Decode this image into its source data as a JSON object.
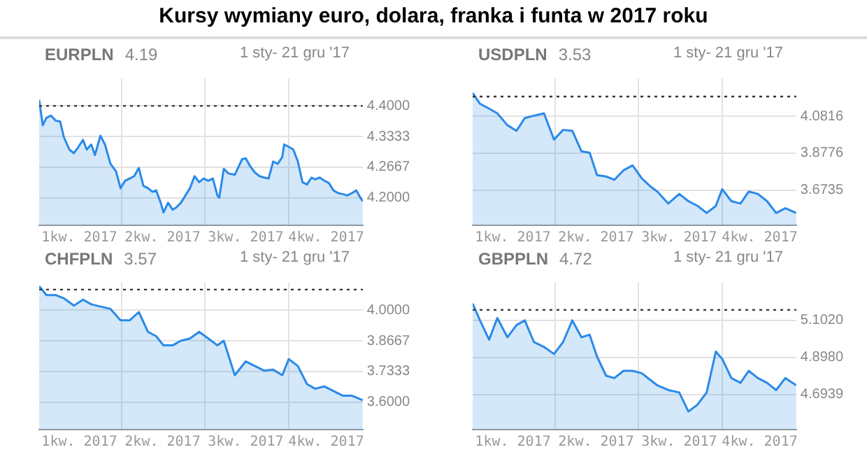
{
  "chart_data": [
    {
      "type": "other",
      "title": "Kursy wymiany euro, dolara, franka i funta w 2017 roku"
    },
    {
      "type": "area",
      "title": "EURPLN",
      "subtitle": "1 sty- 21 gru '17",
      "annotations": [
        "4.19"
      ],
      "grid": true,
      "legend": false,
      "marker": "none",
      "line_style": "solid",
      "x": [
        "2017-01-01",
        "2017-01-05",
        "2017-01-09",
        "2017-01-14",
        "2017-01-19",
        "2017-01-24",
        "2017-01-28",
        "2017-02-03",
        "2017-02-08",
        "2017-02-13",
        "2017-02-18",
        "2017-02-22",
        "2017-02-27",
        "2017-03-03",
        "2017-03-09",
        "2017-03-14",
        "2017-03-20",
        "2017-03-26",
        "2017-03-31",
        "2017-04-05",
        "2017-04-10",
        "2017-04-15",
        "2017-04-20",
        "2017-04-25",
        "2017-04-30",
        "2017-05-05",
        "2017-05-09",
        "2017-05-14",
        "2017-05-17",
        "2017-05-22",
        "2017-05-27",
        "2017-05-31",
        "2017-06-05",
        "2017-06-10",
        "2017-06-15",
        "2017-06-20",
        "2017-06-25",
        "2017-06-30",
        "2017-07-05",
        "2017-07-10",
        "2017-07-15",
        "2017-07-17",
        "2017-07-22",
        "2017-07-27",
        "2017-08-03",
        "2017-08-11",
        "2017-08-15",
        "2017-08-20",
        "2017-08-25",
        "2017-08-30",
        "2017-09-04",
        "2017-09-09",
        "2017-09-14",
        "2017-09-19",
        "2017-09-24",
        "2017-09-26",
        "2017-10-01",
        "2017-10-06",
        "2017-10-11",
        "2017-10-16",
        "2017-10-21",
        "2017-10-26",
        "2017-10-30",
        "2017-11-04",
        "2017-11-09",
        "2017-11-14",
        "2017-11-19",
        "2017-11-24",
        "2017-11-29",
        "2017-12-04",
        "2017-12-09",
        "2017-12-14",
        "2017-12-17",
        "2017-12-21"
      ],
      "series": [
        {
          "color": "#2a8ae8",
          "values": [
            4.413,
            4.358,
            4.374,
            4.379,
            4.368,
            4.366,
            4.332,
            4.305,
            4.297,
            4.311,
            4.326,
            4.305,
            4.316,
            4.293,
            4.335,
            4.316,
            4.274,
            4.258,
            4.221,
            4.237,
            4.242,
            4.247,
            4.265,
            4.226,
            4.221,
            4.213,
            4.216,
            4.189,
            4.168,
            4.189,
            4.174,
            4.179,
            4.189,
            4.205,
            4.221,
            4.247,
            4.234,
            4.242,
            4.237,
            4.242,
            4.205,
            4.2,
            4.263,
            4.253,
            4.25,
            4.284,
            4.286,
            4.268,
            4.255,
            4.247,
            4.244,
            4.242,
            4.279,
            4.274,
            4.289,
            4.316,
            4.311,
            4.305,
            4.279,
            4.234,
            4.229,
            4.244,
            4.24,
            4.244,
            4.237,
            4.232,
            4.216,
            4.21,
            4.208,
            4.205,
            4.21,
            4.216,
            4.205,
            4.192
          ]
        }
      ],
      "xlim": [
        "2017-01-01",
        "2017-12-21"
      ],
      "xticks": [
        {
          "value": "2017-02-14",
          "label": "1kw. 2017"
        },
        {
          "value": "2017-04-01",
          "label": null
        },
        {
          "value": "2017-05-16",
          "label": "2kw. 2017"
        },
        {
          "value": "2017-07-01",
          "label": null
        },
        {
          "value": "2017-08-15",
          "label": "3kw. 2017"
        },
        {
          "value": "2017-10-01",
          "label": null
        },
        {
          "value": "2017-11-11",
          "label": "4kw. 2017"
        }
      ],
      "ylim": [
        4.14,
        4.46
      ],
      "yticks": [
        {
          "value": 4.2,
          "label": "4.2000"
        },
        {
          "value": 4.2667,
          "label": "4.2667"
        },
        {
          "value": 4.3333,
          "label": "4.3333"
        },
        {
          "value": 4.4,
          "label": "4.4000"
        }
      ],
      "ref_lines": [
        {
          "axis": "y",
          "value": 4.4,
          "color": "#333333",
          "line_style": "dotted"
        }
      ]
    },
    {
      "type": "area",
      "title": "USDPLN",
      "subtitle": "1 sty- 21 gru '17",
      "annotations": [
        "3.53"
      ],
      "grid": true,
      "legend": false,
      "marker": "none",
      "line_style": "solid",
      "x": [
        "2017-01-01",
        "2017-01-09",
        "2017-01-19",
        "2017-01-28",
        "2017-02-08",
        "2017-02-18",
        "2017-02-27",
        "2017-03-09",
        "2017-03-20",
        "2017-03-31",
        "2017-04-10",
        "2017-04-20",
        "2017-04-30",
        "2017-05-09",
        "2017-05-17",
        "2017-05-27",
        "2017-06-05",
        "2017-06-15",
        "2017-06-25",
        "2017-07-05",
        "2017-07-15",
        "2017-07-22",
        "2017-08-03",
        "2017-08-15",
        "2017-08-25",
        "2017-09-04",
        "2017-09-14",
        "2017-09-24",
        "2017-10-01",
        "2017-10-11",
        "2017-10-21",
        "2017-10-30",
        "2017-11-09",
        "2017-11-19",
        "2017-11-29",
        "2017-12-09",
        "2017-12-21"
      ],
      "series": [
        {
          "color": "#2a8ae8",
          "values": [
            4.21,
            4.15,
            4.123,
            4.097,
            4.032,
            4.001,
            4.071,
            4.084,
            4.097,
            3.953,
            4.006,
            4.001,
            3.888,
            3.88,
            3.757,
            3.749,
            3.731,
            3.783,
            3.81,
            3.739,
            3.692,
            3.666,
            3.6,
            3.653,
            3.613,
            3.587,
            3.548,
            3.587,
            3.679,
            3.613,
            3.6,
            3.666,
            3.653,
            3.613,
            3.548,
            3.574,
            3.548
          ]
        }
      ],
      "xlim": [
        "2017-01-01",
        "2017-12-21"
      ],
      "xticks": [
        {
          "value": "2017-02-14",
          "label": "1kw. 2017"
        },
        {
          "value": "2017-04-01",
          "label": null
        },
        {
          "value": "2017-05-16",
          "label": "2kw. 2017"
        },
        {
          "value": "2017-07-01",
          "label": null
        },
        {
          "value": "2017-08-15",
          "label": "3kw. 2017"
        },
        {
          "value": "2017-10-01",
          "label": null
        },
        {
          "value": "2017-11-11",
          "label": "4kw. 2017"
        }
      ],
      "ylim": [
        3.48,
        4.29
      ],
      "yticks": [
        {
          "value": 3.6735,
          "label": "3.6735"
        },
        {
          "value": 3.8776,
          "label": "3.8776"
        },
        {
          "value": 4.0816,
          "label": "4.0816"
        }
      ],
      "ref_lines": [
        {
          "axis": "y",
          "value": 4.19,
          "color": "#333333",
          "line_style": "dotted"
        }
      ]
    },
    {
      "type": "area",
      "title": "CHFPLN",
      "subtitle": "1 sty- 21 gru '17",
      "annotations": [
        "3.57"
      ],
      "grid": true,
      "legend": false,
      "marker": "none",
      "line_style": "solid",
      "x": [
        "2017-01-01",
        "2017-01-09",
        "2017-01-19",
        "2017-01-28",
        "2017-02-08",
        "2017-02-18",
        "2017-02-27",
        "2017-03-09",
        "2017-03-20",
        "2017-03-31",
        "2017-04-10",
        "2017-04-20",
        "2017-04-30",
        "2017-05-09",
        "2017-05-17",
        "2017-05-27",
        "2017-06-05",
        "2017-06-15",
        "2017-06-25",
        "2017-07-05",
        "2017-07-15",
        "2017-07-22",
        "2017-08-03",
        "2017-08-15",
        "2017-08-25",
        "2017-09-04",
        "2017-09-14",
        "2017-09-24",
        "2017-10-01",
        "2017-10-11",
        "2017-10-21",
        "2017-10-30",
        "2017-11-09",
        "2017-11-19",
        "2017-11-29",
        "2017-12-09",
        "2017-12-21"
      ],
      "series": [
        {
          "color": "#2a8ae8",
          "values": [
            4.105,
            4.066,
            4.066,
            4.052,
            4.02,
            4.046,
            4.026,
            4.016,
            4.006,
            3.956,
            3.956,
            3.992,
            3.906,
            3.887,
            3.847,
            3.847,
            3.867,
            3.877,
            3.906,
            3.877,
            3.847,
            3.867,
            3.717,
            3.777,
            3.757,
            3.737,
            3.741,
            3.717,
            3.787,
            3.757,
            3.678,
            3.658,
            3.668,
            3.648,
            3.628,
            3.628,
            3.608
          ]
        }
      ],
      "xlim": [
        "2017-01-01",
        "2017-12-21"
      ],
      "xticks": [
        {
          "value": "2017-02-14",
          "label": "1kw. 2017"
        },
        {
          "value": "2017-04-01",
          "label": null
        },
        {
          "value": "2017-05-16",
          "label": "2kw. 2017"
        },
        {
          "value": "2017-07-01",
          "label": null
        },
        {
          "value": "2017-08-15",
          "label": "3kw. 2017"
        },
        {
          "value": "2017-10-01",
          "label": null
        },
        {
          "value": "2017-11-11",
          "label": "4kw. 2017"
        }
      ],
      "ylim": [
        3.48,
        4.12
      ],
      "yticks": [
        {
          "value": 3.6,
          "label": "3.6000"
        },
        {
          "value": 3.7333,
          "label": "3.7333"
        },
        {
          "value": 3.8667,
          "label": "3.8667"
        },
        {
          "value": 4.0,
          "label": "4.0000"
        }
      ],
      "ref_lines": [
        {
          "axis": "y",
          "value": 4.09,
          "color": "#333333",
          "line_style": "dotted"
        }
      ]
    },
    {
      "type": "area",
      "title": "GBPPLN",
      "subtitle": "1 sty- 21 gru '17",
      "annotations": [
        "4.72"
      ],
      "grid": true,
      "legend": false,
      "marker": "none",
      "line_style": "solid",
      "x": [
        "2017-01-01",
        "2017-01-09",
        "2017-01-19",
        "2017-01-28",
        "2017-02-08",
        "2017-02-18",
        "2017-02-27",
        "2017-03-09",
        "2017-03-20",
        "2017-03-31",
        "2017-04-10",
        "2017-04-20",
        "2017-04-30",
        "2017-05-09",
        "2017-05-17",
        "2017-05-27",
        "2017-06-05",
        "2017-06-15",
        "2017-06-25",
        "2017-07-05",
        "2017-07-15",
        "2017-07-22",
        "2017-08-03",
        "2017-08-15",
        "2017-08-25",
        "2017-09-04",
        "2017-09-14",
        "2017-09-24",
        "2017-10-01",
        "2017-10-11",
        "2017-10-21",
        "2017-10-30",
        "2017-11-09",
        "2017-11-19",
        "2017-11-29",
        "2017-12-09",
        "2017-12-21"
      ],
      "series": [
        {
          "color": "#2a8ae8",
          "values": [
            5.195,
            5.102,
            4.996,
            5.115,
            5.009,
            5.076,
            5.102,
            4.983,
            4.956,
            4.917,
            4.983,
            5.102,
            5.009,
            5.023,
            4.903,
            4.797,
            4.784,
            4.824,
            4.824,
            4.811,
            4.771,
            4.744,
            4.718,
            4.705,
            4.6,
            4.638,
            4.705,
            4.93,
            4.89,
            4.784,
            4.758,
            4.824,
            4.784,
            4.758,
            4.718,
            4.784,
            4.744
          ]
        }
      ],
      "xlim": [
        "2017-01-01",
        "2017-12-21"
      ],
      "xticks": [
        {
          "value": "2017-02-14",
          "label": "1kw. 2017"
        },
        {
          "value": "2017-04-01",
          "label": null
        },
        {
          "value": "2017-05-16",
          "label": "2kw. 2017"
        },
        {
          "value": "2017-07-01",
          "label": null
        },
        {
          "value": "2017-08-15",
          "label": "3kw. 2017"
        },
        {
          "value": "2017-10-01",
          "label": null
        },
        {
          "value": "2017-11-11",
          "label": "4kw. 2017"
        }
      ],
      "ylim": [
        4.5,
        5.31
      ],
      "yticks": [
        {
          "value": 4.6939,
          "label": "4.6939"
        },
        {
          "value": 4.898,
          "label": "4.8980"
        },
        {
          "value": 5.102,
          "label": "5.1020"
        }
      ],
      "ref_lines": [
        {
          "axis": "y",
          "value": 5.16,
          "color": "#333333",
          "line_style": "dotted"
        }
      ]
    }
  ]
}
